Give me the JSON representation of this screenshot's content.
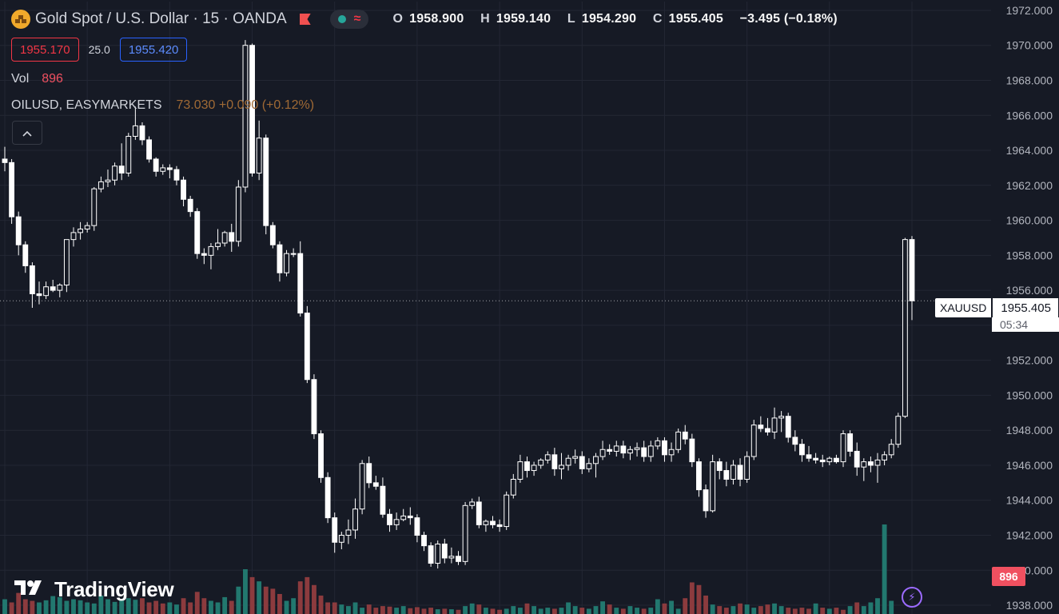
{
  "header": {
    "title": "Gold Spot / U.S. Dollar · 15 · OANDA",
    "ohlc": {
      "o_label": "O",
      "o": "1958.900",
      "h_label": "H",
      "h": "1959.140",
      "l_label": "L",
      "l": "1954.290",
      "c_label": "C",
      "c": "1955.405",
      "change": "−3.495 (−0.18%)"
    }
  },
  "quote": {
    "sell": "1955.170",
    "spread": "25.0",
    "buy": "1955.420"
  },
  "volume_legend": {
    "label": "Vol",
    "value": "896"
  },
  "overlay": {
    "symbol": "OILUSD, EASYMARKETS",
    "value": "73.030 +0.090 (+0.12%)"
  },
  "watermark": "TradingView",
  "last": {
    "symbol": "XAUUSD",
    "price": "1955.405",
    "timer": "05:34",
    "volume": "896"
  },
  "colors": {
    "up_volume": "#22786f",
    "down_volume": "#8c3b3e",
    "candle": "#ffffff",
    "background": "#161a25",
    "grid": "#232734"
  },
  "icons": {
    "logo": "gold-bars-icon",
    "flag": "flag-icon",
    "status": "market-status-icon",
    "collapse": "chevron-up-icon",
    "bolt": "lightning-icon"
  },
  "chart_data": {
    "type": "candlestick",
    "y_axis": {
      "min": 1937.5,
      "max": 1972.5,
      "ticks": [
        "1972.000",
        "1970.000",
        "1968.000",
        "1966.000",
        "1964.000",
        "1962.000",
        "1960.000",
        "1958.000",
        "1956.000",
        "1954.000",
        "1952.000",
        "1950.000",
        "1948.000",
        "1946.000",
        "1944.000",
        "1942.000",
        "1940.000",
        "1938.000"
      ]
    },
    "grid": true,
    "series": [
      {
        "name": "XAUUSD",
        "candles": [
          [
            1963.5,
            1964.2,
            1962.8,
            1963.3
          ],
          [
            1963.3,
            1963.5,
            1959.8,
            1960.2
          ],
          [
            1960.2,
            1960.5,
            1958.0,
            1958.6
          ],
          [
            1958.6,
            1958.8,
            1957.0,
            1957.4
          ],
          [
            1957.4,
            1957.6,
            1955.0,
            1955.8
          ],
          [
            1955.8,
            1956.5,
            1955.2,
            1955.7
          ],
          [
            1955.7,
            1956.5,
            1955.5,
            1956.2
          ],
          [
            1956.2,
            1956.6,
            1955.9,
            1956.0
          ],
          [
            1956.0,
            1956.4,
            1955.6,
            1956.3
          ],
          [
            1956.3,
            1958.9,
            1955.9,
            1958.9
          ],
          [
            1958.9,
            1959.6,
            1958.5,
            1959.3
          ],
          [
            1959.3,
            1959.9,
            1958.9,
            1959.5
          ],
          [
            1959.5,
            1959.9,
            1959.3,
            1959.7
          ],
          [
            1959.7,
            1961.9,
            1959.4,
            1961.8
          ],
          [
            1961.8,
            1962.5,
            1961.6,
            1962.2
          ],
          [
            1962.2,
            1962.9,
            1961.9,
            1962.3
          ],
          [
            1962.3,
            1963.3,
            1962.0,
            1963.1
          ],
          [
            1963.1,
            1964.4,
            1962.3,
            1962.7
          ],
          [
            1962.7,
            1965.0,
            1962.5,
            1964.8
          ],
          [
            1964.8,
            1966.5,
            1964.6,
            1965.4
          ],
          [
            1965.4,
            1965.6,
            1964.3,
            1964.6
          ],
          [
            1964.6,
            1964.8,
            1963.3,
            1963.5
          ],
          [
            1963.5,
            1963.6,
            1962.5,
            1962.8
          ],
          [
            1962.8,
            1963.2,
            1962.6,
            1963.0
          ],
          [
            1963.0,
            1963.2,
            1962.4,
            1962.9
          ],
          [
            1962.9,
            1963.1,
            1962.0,
            1962.3
          ],
          [
            1962.3,
            1962.5,
            1960.8,
            1961.2
          ],
          [
            1961.2,
            1961.4,
            1960.2,
            1960.5
          ],
          [
            1960.5,
            1960.7,
            1957.8,
            1958.1
          ],
          [
            1958.1,
            1958.4,
            1957.5,
            1958.0
          ],
          [
            1958.0,
            1958.7,
            1957.2,
            1958.5
          ],
          [
            1958.5,
            1959.5,
            1958.3,
            1958.7
          ],
          [
            1958.7,
            1959.4,
            1958.5,
            1959.3
          ],
          [
            1959.3,
            1959.8,
            1958.2,
            1958.8
          ],
          [
            1958.8,
            1962.3,
            1958.5,
            1961.9
          ],
          [
            1961.9,
            1970.3,
            1961.6,
            1970.0
          ],
          [
            1970.0,
            1970.1,
            1962.5,
            1962.7
          ],
          [
            1962.7,
            1965.7,
            1962.3,
            1964.7
          ],
          [
            1964.7,
            1964.9,
            1959.2,
            1959.7
          ],
          [
            1959.7,
            1959.9,
            1958.4,
            1958.6
          ],
          [
            1958.6,
            1958.8,
            1956.5,
            1957.0
          ],
          [
            1957.0,
            1958.3,
            1956.8,
            1958.1
          ],
          [
            1958.1,
            1958.4,
            1957.9,
            1958.1
          ],
          [
            1958.1,
            1958.8,
            1954.5,
            1954.7
          ],
          [
            1954.7,
            1955.1,
            1950.7,
            1950.9
          ],
          [
            1950.9,
            1951.2,
            1947.5,
            1947.8
          ],
          [
            1947.8,
            1948.0,
            1945.0,
            1945.3
          ],
          [
            1945.3,
            1945.6,
            1942.7,
            1943.0
          ],
          [
            1943.0,
            1943.3,
            1941.0,
            1941.6
          ],
          [
            1941.6,
            1942.2,
            1941.2,
            1942.0
          ],
          [
            1942.0,
            1942.9,
            1941.5,
            1942.3
          ],
          [
            1942.3,
            1944.1,
            1941.8,
            1943.5
          ],
          [
            1943.5,
            1946.3,
            1943.2,
            1946.1
          ],
          [
            1946.1,
            1946.5,
            1944.7,
            1945.0
          ],
          [
            1945.0,
            1945.4,
            1944.6,
            1944.8
          ],
          [
            1944.8,
            1945.3,
            1943.0,
            1943.2
          ],
          [
            1943.2,
            1943.5,
            1942.2,
            1942.6
          ],
          [
            1942.6,
            1943.3,
            1942.3,
            1942.9
          ],
          [
            1942.9,
            1943.5,
            1942.8,
            1943.1
          ],
          [
            1943.1,
            1943.6,
            1942.6,
            1943.0
          ],
          [
            1943.0,
            1943.2,
            1941.6,
            1942.0
          ],
          [
            1942.0,
            1942.2,
            1941.1,
            1941.4
          ],
          [
            1941.4,
            1941.6,
            1940.2,
            1940.4
          ],
          [
            1940.4,
            1941.7,
            1940.1,
            1941.5
          ],
          [
            1941.5,
            1941.8,
            1940.4,
            1940.7
          ],
          [
            1940.7,
            1941.3,
            1940.4,
            1940.8
          ],
          [
            1940.8,
            1941.1,
            1940.3,
            1940.5
          ],
          [
            1940.5,
            1943.9,
            1940.3,
            1943.7
          ],
          [
            1943.7,
            1944.1,
            1943.5,
            1943.9
          ],
          [
            1943.9,
            1944.2,
            1942.4,
            1942.6
          ],
          [
            1942.6,
            1942.9,
            1942.2,
            1942.8
          ],
          [
            1942.8,
            1943.1,
            1942.4,
            1942.6
          ],
          [
            1942.6,
            1942.9,
            1942.2,
            1942.5
          ],
          [
            1942.5,
            1944.5,
            1942.3,
            1944.3
          ],
          [
            1944.3,
            1945.5,
            1944.1,
            1945.2
          ],
          [
            1945.2,
            1946.6,
            1945.0,
            1946.2
          ],
          [
            1946.2,
            1946.5,
            1945.3,
            1945.7
          ],
          [
            1945.7,
            1946.2,
            1945.4,
            1946.0
          ],
          [
            1946.0,
            1946.4,
            1945.8,
            1946.3
          ],
          [
            1946.3,
            1946.8,
            1946.1,
            1946.6
          ],
          [
            1946.6,
            1947.0,
            1945.4,
            1945.8
          ],
          [
            1945.8,
            1946.7,
            1945.2,
            1946.0
          ],
          [
            1946.0,
            1946.6,
            1945.7,
            1946.4
          ],
          [
            1946.4,
            1946.9,
            1946.1,
            1946.5
          ],
          [
            1946.5,
            1946.8,
            1945.5,
            1945.8
          ],
          [
            1945.8,
            1946.4,
            1945.6,
            1946.1
          ],
          [
            1946.1,
            1946.7,
            1945.3,
            1946.5
          ],
          [
            1946.5,
            1947.4,
            1946.3,
            1946.9
          ],
          [
            1946.9,
            1947.2,
            1946.6,
            1946.8
          ],
          [
            1946.8,
            1947.4,
            1946.5,
            1947.1
          ],
          [
            1947.1,
            1947.4,
            1946.4,
            1946.7
          ],
          [
            1946.7,
            1947.1,
            1946.3,
            1946.9
          ],
          [
            1946.9,
            1947.3,
            1946.5,
            1947.0
          ],
          [
            1947.0,
            1947.4,
            1946.2,
            1946.5
          ],
          [
            1946.5,
            1947.4,
            1946.2,
            1947.1
          ],
          [
            1947.1,
            1947.6,
            1946.9,
            1947.4
          ],
          [
            1947.4,
            1947.6,
            1946.2,
            1946.6
          ],
          [
            1946.6,
            1947.3,
            1946.2,
            1946.9
          ],
          [
            1946.9,
            1948.1,
            1946.7,
            1947.9
          ],
          [
            1947.9,
            1948.3,
            1947.2,
            1947.5
          ],
          [
            1947.5,
            1947.8,
            1945.9,
            1946.2
          ],
          [
            1946.2,
            1946.4,
            1944.2,
            1944.6
          ],
          [
            1944.6,
            1944.9,
            1943.0,
            1943.4
          ],
          [
            1943.4,
            1946.6,
            1943.3,
            1946.2
          ],
          [
            1946.2,
            1946.4,
            1945.2,
            1945.7
          ],
          [
            1945.7,
            1946.2,
            1944.8,
            1945.2
          ],
          [
            1945.2,
            1946.3,
            1944.9,
            1946.0
          ],
          [
            1946.0,
            1946.4,
            1944.8,
            1945.2
          ],
          [
            1945.2,
            1946.8,
            1945.0,
            1946.5
          ],
          [
            1946.5,
            1948.6,
            1946.3,
            1948.3
          ],
          [
            1948.3,
            1948.8,
            1947.9,
            1948.1
          ],
          [
            1948.1,
            1948.7,
            1947.7,
            1947.9
          ],
          [
            1947.9,
            1949.3,
            1947.5,
            1948.7
          ],
          [
            1948.7,
            1949.1,
            1947.9,
            1948.8
          ],
          [
            1948.8,
            1949.0,
            1947.3,
            1947.6
          ],
          [
            1947.6,
            1948.0,
            1946.8,
            1947.2
          ],
          [
            1947.2,
            1947.5,
            1946.2,
            1946.6
          ],
          [
            1946.6,
            1947.1,
            1946.2,
            1946.4
          ],
          [
            1946.4,
            1946.7,
            1946.1,
            1946.3
          ],
          [
            1946.3,
            1946.6,
            1945.9,
            1946.2
          ],
          [
            1946.2,
            1946.5,
            1946.0,
            1946.4
          ],
          [
            1946.4,
            1946.6,
            1946.1,
            1946.2
          ],
          [
            1946.2,
            1948.0,
            1945.9,
            1947.8
          ],
          [
            1947.8,
            1948.0,
            1946.5,
            1946.8
          ],
          [
            1946.8,
            1947.3,
            1945.4,
            1945.9
          ],
          [
            1945.9,
            1946.4,
            1945.1,
            1946.2
          ],
          [
            1946.2,
            1946.5,
            1945.6,
            1946.0
          ],
          [
            1946.0,
            1946.7,
            1945.0,
            1946.3
          ],
          [
            1946.3,
            1946.8,
            1946.0,
            1946.6
          ],
          [
            1946.6,
            1947.5,
            1946.4,
            1947.2
          ],
          [
            1947.2,
            1949.0,
            1947.0,
            1948.8
          ],
          [
            1948.8,
            1959.0,
            1948.7,
            1958.9
          ],
          [
            1958.9,
            1959.1,
            1954.3,
            1955.4
          ]
        ]
      },
      {
        "name": "Vol",
        "up": [
          true,
          false,
          false,
          false,
          false,
          true,
          true,
          true,
          true,
          true,
          true,
          true,
          true,
          true,
          true,
          true,
          true,
          true,
          true,
          true,
          false,
          false,
          false,
          false,
          true,
          true,
          false,
          false,
          false,
          false,
          true,
          true,
          true,
          false,
          true,
          true,
          false,
          true,
          false,
          false,
          false,
          true,
          true,
          false,
          false,
          false,
          false,
          false,
          false,
          true,
          true,
          true,
          true,
          false,
          false,
          false,
          false,
          true,
          true,
          false,
          false,
          false,
          false,
          true,
          false,
          true,
          false,
          true,
          true,
          false,
          true,
          false,
          false,
          true,
          true,
          true,
          false,
          true,
          true,
          true,
          false,
          true,
          true,
          true,
          false,
          true,
          true,
          true,
          false,
          true,
          false,
          true,
          true,
          false,
          true,
          true,
          false,
          true,
          true,
          false,
          false,
          false,
          false,
          true,
          false,
          false,
          true,
          false,
          true,
          true,
          false,
          false,
          true,
          true,
          false,
          false,
          false,
          false,
          true,
          false,
          true,
          false,
          false,
          true,
          false,
          true,
          true,
          true,
          true,
          true,
          false
        ],
        "values": [
          0.28,
          0.22,
          0.4,
          0.28,
          0.25,
          0.22,
          0.26,
          0.34,
          0.32,
          0.25,
          0.28,
          0.26,
          0.22,
          0.2,
          0.35,
          0.28,
          0.23,
          0.28,
          0.3,
          0.27,
          0.3,
          0.22,
          0.25,
          0.2,
          0.22,
          0.18,
          0.3,
          0.22,
          0.42,
          0.3,
          0.25,
          0.22,
          0.32,
          0.25,
          0.52,
          0.85,
          0.7,
          0.62,
          0.52,
          0.48,
          0.38,
          0.25,
          0.3,
          0.62,
          0.7,
          0.55,
          0.35,
          0.22,
          0.22,
          0.18,
          0.15,
          0.22,
          0.12,
          0.18,
          0.12,
          0.15,
          0.14,
          0.12,
          0.15,
          0.11,
          0.13,
          0.1,
          0.12,
          0.09,
          0.1,
          0.09,
          0.08,
          0.15,
          0.2,
          0.18,
          0.12,
          0.1,
          0.08,
          0.1,
          0.15,
          0.12,
          0.2,
          0.15,
          0.1,
          0.12,
          0.1,
          0.12,
          0.22,
          0.15,
          0.12,
          0.1,
          0.15,
          0.24,
          0.18,
          0.12,
          0.1,
          0.15,
          0.12,
          0.1,
          0.12,
          0.28,
          0.2,
          0.25,
          0.1,
          0.3,
          0.6,
          0.55,
          0.35,
          0.18,
          0.15,
          0.12,
          0.15,
          0.2,
          0.18,
          0.12,
          0.15,
          0.18,
          0.2,
          0.15,
          0.12,
          0.1,
          0.12,
          0.1,
          0.2,
          0.12,
          0.1,
          0.12,
          0.08,
          0.15,
          0.22,
          0.15,
          0.22,
          0.3,
          1.7,
          0.25
        ]
      }
    ]
  }
}
